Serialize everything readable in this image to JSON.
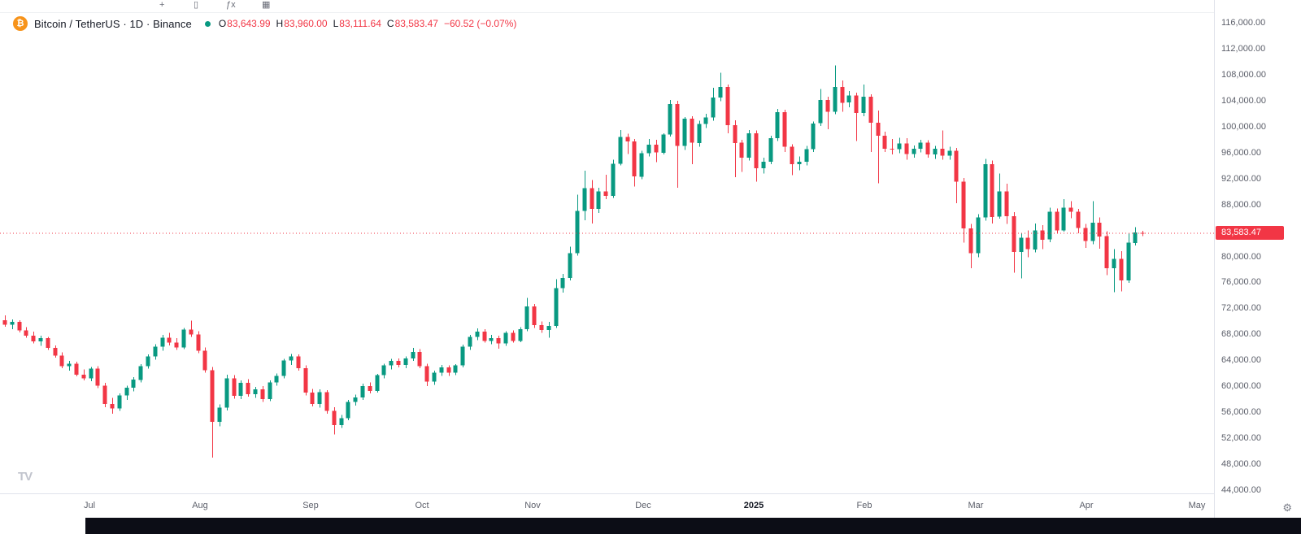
{
  "icons": {
    "compare": "+",
    "chart_type": "▯",
    "indicators": "ƒx",
    "layout": "▦",
    "gear": "⚙",
    "bitcoin": "₿",
    "watermark": "TV"
  },
  "legend": {
    "symbol_title": "Bitcoin / TetherUS · 1D · Binance",
    "ohlc": {
      "o_label": "O",
      "o": "83,643.99",
      "h_label": "H",
      "h": "83,960.00",
      "l_label": "L",
      "l": "83,111.64",
      "c_label": "C",
      "c": "83,583.47",
      "change": "−60.52 (−0.07%)"
    }
  },
  "price_axis": {
    "labels": [
      {
        "t": "116,000.00",
        "v": 116
      },
      {
        "t": "112,000.00",
        "v": 112
      },
      {
        "t": "108,000.00",
        "v": 108
      },
      {
        "t": "104,000.00",
        "v": 104
      },
      {
        "t": "100,000.00",
        "v": 100
      },
      {
        "t": "96,000.00",
        "v": 96
      },
      {
        "t": "92,000.00",
        "v": 92
      },
      {
        "t": "88,000.00",
        "v": 88
      },
      {
        "t": "80,000.00",
        "v": 80
      },
      {
        "t": "76,000.00",
        "v": 76
      },
      {
        "t": "72,000.00",
        "v": 72
      },
      {
        "t": "68,000.00",
        "v": 68
      },
      {
        "t": "64,000.00",
        "v": 64
      },
      {
        "t": "60,000.00",
        "v": 60
      },
      {
        "t": "56,000.00",
        "v": 56
      },
      {
        "t": "52,000.00",
        "v": 52
      },
      {
        "t": "48,000.00",
        "v": 48
      },
      {
        "t": "44,000.00",
        "v": 44
      }
    ],
    "last_price_badge": {
      "text": "83,583.47",
      "color": "#F23645"
    }
  },
  "time_axis": {
    "labels": [
      {
        "t": "Jul"
      },
      {
        "t": "Aug"
      },
      {
        "t": "Sep"
      },
      {
        "t": "Oct"
      },
      {
        "t": "Nov"
      },
      {
        "t": "Dec"
      },
      {
        "t": "2025",
        "year": true
      },
      {
        "t": "Feb"
      },
      {
        "t": "Mar"
      },
      {
        "t": "Apr"
      },
      {
        "t": "May"
      }
    ]
  },
  "colors": {
    "up": "#089981",
    "down": "#F23645",
    "axis_text": "#5d606b",
    "title_text": "#131722",
    "accent_orange": "#F7931A"
  },
  "chart_data": {
    "type": "candlestick",
    "title": "Bitcoin / TetherUS · 1D · Binance",
    "unit": "thousand USD",
    "price_range": [
      44,
      116
    ],
    "grid": false,
    "legend_position": "top-left",
    "x_months": [
      "Jul",
      "Aug",
      "Sep",
      "Oct",
      "Nov",
      "Dec",
      "2025",
      "Feb",
      "Mar",
      "Apr",
      "May"
    ],
    "up_color": "#089981",
    "down_color": "#F23645",
    "last_price": 83.58347,
    "last_candle_ohlc": [
      83.64399,
      83.96,
      83.11164,
      83.58347
    ],
    "candles": [
      [
        70.2,
        70.9,
        69.2,
        69.5
      ],
      [
        69.5,
        70.3,
        68.8,
        69.9
      ],
      [
        69.9,
        70.2,
        68.3,
        68.6
      ],
      [
        68.6,
        69.1,
        67.5,
        67.8
      ],
      [
        67.8,
        68.4,
        66.6,
        66.9
      ],
      [
        66.9,
        67.8,
        66.2,
        67.4
      ],
      [
        67.4,
        67.6,
        65.6,
        65.9
      ],
      [
        65.9,
        66.3,
        64.4,
        64.7
      ],
      [
        64.7,
        65.2,
        62.8,
        63.1
      ],
      [
        63.1,
        63.9,
        62.4,
        63.5
      ],
      [
        63.5,
        63.8,
        61.5,
        61.8
      ],
      [
        61.8,
        62.6,
        60.9,
        61.2
      ],
      [
        61.2,
        63.0,
        60.8,
        62.7
      ],
      [
        62.7,
        63.1,
        59.7,
        60.1
      ],
      [
        60.1,
        60.5,
        56.8,
        57.3
      ],
      [
        57.3,
        58.2,
        55.8,
        56.6
      ],
      [
        56.6,
        58.9,
        56.2,
        58.6
      ],
      [
        58.6,
        60.1,
        57.9,
        59.8
      ],
      [
        59.8,
        61.4,
        59.2,
        61.0
      ],
      [
        61.0,
        63.4,
        60.6,
        63.1
      ],
      [
        63.1,
        64.9,
        62.7,
        64.6
      ],
      [
        64.6,
        66.5,
        64.1,
        66.1
      ],
      [
        66.1,
        67.9,
        65.5,
        67.5
      ],
      [
        67.5,
        68.2,
        66.3,
        66.7
      ],
      [
        66.7,
        67.4,
        65.6,
        66.0
      ],
      [
        66.0,
        69.0,
        65.7,
        68.7
      ],
      [
        68.7,
        70.1,
        67.6,
        68.0
      ],
      [
        68.0,
        68.5,
        65.1,
        65.5
      ],
      [
        65.5,
        66.0,
        62.1,
        62.5
      ],
      [
        62.5,
        63.0,
        49.0,
        54.5
      ],
      [
        54.5,
        57.2,
        53.8,
        56.7
      ],
      [
        56.7,
        61.8,
        56.3,
        61.2
      ],
      [
        61.2,
        61.7,
        58.1,
        58.5
      ],
      [
        58.5,
        60.9,
        58.0,
        60.5
      ],
      [
        60.5,
        61.1,
        58.4,
        58.8
      ],
      [
        58.8,
        59.9,
        58.2,
        59.5
      ],
      [
        59.5,
        60.0,
        57.6,
        58.0
      ],
      [
        58.0,
        60.9,
        57.7,
        60.6
      ],
      [
        60.6,
        62.0,
        60.1,
        61.6
      ],
      [
        61.6,
        64.2,
        61.2,
        64.0
      ],
      [
        64.0,
        65.0,
        63.3,
        64.6
      ],
      [
        64.6,
        64.9,
        62.4,
        62.8
      ],
      [
        62.8,
        63.2,
        58.6,
        59.0
      ],
      [
        59.0,
        59.6,
        56.9,
        57.3
      ],
      [
        57.3,
        59.5,
        56.7,
        59.1
      ],
      [
        59.1,
        59.4,
        55.8,
        56.2
      ],
      [
        56.2,
        56.8,
        52.6,
        54.0
      ],
      [
        54.0,
        55.6,
        53.6,
        55.1
      ],
      [
        55.1,
        57.9,
        54.8,
        57.6
      ],
      [
        57.6,
        58.7,
        57.0,
        58.3
      ],
      [
        58.3,
        60.4,
        57.9,
        60.0
      ],
      [
        60.0,
        60.6,
        58.9,
        59.3
      ],
      [
        59.3,
        61.9,
        59.0,
        61.7
      ],
      [
        61.7,
        63.5,
        61.2,
        63.2
      ],
      [
        63.2,
        64.2,
        62.6,
        63.9
      ],
      [
        63.9,
        64.3,
        62.9,
        63.3
      ],
      [
        63.3,
        64.6,
        62.8,
        64.3
      ],
      [
        64.3,
        65.9,
        63.9,
        65.3
      ],
      [
        65.3,
        65.7,
        62.8,
        63.1
      ],
      [
        63.1,
        63.5,
        60.0,
        60.7
      ],
      [
        60.7,
        62.4,
        60.2,
        62.1
      ],
      [
        62.1,
        63.3,
        61.6,
        62.9
      ],
      [
        62.9,
        63.2,
        61.6,
        62.1
      ],
      [
        62.1,
        63.4,
        61.7,
        63.2
      ],
      [
        63.2,
        66.4,
        62.9,
        66.1
      ],
      [
        66.1,
        67.9,
        65.6,
        67.6
      ],
      [
        67.6,
        68.9,
        67.1,
        68.4
      ],
      [
        68.4,
        68.8,
        66.7,
        67.0
      ],
      [
        67.0,
        67.9,
        66.5,
        67.4
      ],
      [
        67.4,
        67.8,
        65.8,
        66.6
      ],
      [
        66.6,
        68.5,
        66.2,
        68.2
      ],
      [
        68.2,
        68.6,
        66.7,
        67.0
      ],
      [
        67.0,
        69.1,
        66.8,
        68.8
      ],
      [
        68.8,
        73.6,
        68.5,
        72.3
      ],
      [
        72.3,
        72.7,
        69.0,
        69.4
      ],
      [
        69.4,
        70.0,
        68.2,
        68.7
      ],
      [
        68.7,
        69.9,
        67.5,
        69.3
      ],
      [
        69.3,
        76.5,
        69.0,
        75.1
      ],
      [
        75.1,
        77.3,
        74.4,
        76.7
      ],
      [
        76.7,
        81.5,
        76.3,
        80.5
      ],
      [
        80.5,
        89.5,
        80.1,
        87.0
      ],
      [
        87.0,
        93.2,
        85.6,
        90.5
      ],
      [
        90.5,
        91.8,
        85.1,
        87.3
      ],
      [
        87.3,
        90.6,
        86.7,
        90.0
      ],
      [
        90.0,
        92.6,
        88.8,
        89.3
      ],
      [
        89.3,
        94.9,
        89.0,
        94.3
      ],
      [
        94.3,
        99.5,
        94.0,
        98.4
      ],
      [
        98.4,
        98.9,
        95.8,
        97.7
      ],
      [
        97.7,
        98.1,
        90.8,
        92.3
      ],
      [
        92.3,
        96.3,
        91.9,
        95.9
      ],
      [
        95.9,
        98.1,
        95.4,
        97.2
      ],
      [
        97.2,
        98.0,
        94.5,
        96.0
      ],
      [
        96.0,
        99.0,
        95.7,
        98.8
      ],
      [
        98.8,
        104.1,
        98.5,
        103.5
      ],
      [
        103.5,
        104.0,
        90.6,
        97.0
      ],
      [
        97.0,
        101.5,
        96.4,
        101.2
      ],
      [
        101.2,
        101.6,
        94.2,
        97.5
      ],
      [
        97.5,
        100.9,
        96.9,
        100.4
      ],
      [
        100.4,
        102.0,
        99.8,
        101.4
      ],
      [
        101.4,
        106.0,
        100.9,
        104.5
      ],
      [
        104.5,
        108.3,
        103.9,
        106.1
      ],
      [
        106.1,
        106.5,
        99.0,
        100.2
      ],
      [
        100.2,
        101.0,
        92.2,
        97.5
      ],
      [
        97.5,
        98.0,
        93.0,
        95.2
      ],
      [
        95.2,
        99.5,
        94.8,
        99.0
      ],
      [
        99.0,
        99.4,
        91.5,
        93.6
      ],
      [
        93.6,
        95.2,
        92.8,
        94.6
      ],
      [
        94.6,
        98.6,
        94.2,
        98.2
      ],
      [
        98.2,
        102.7,
        97.8,
        102.2
      ],
      [
        102.2,
        102.6,
        96.1,
        96.9
      ],
      [
        96.9,
        97.3,
        92.5,
        94.2
      ],
      [
        94.2,
        95.4,
        93.3,
        94.6
      ],
      [
        94.6,
        97.0,
        94.0,
        96.5
      ],
      [
        96.5,
        100.8,
        96.1,
        100.5
      ],
      [
        100.5,
        105.8,
        100.1,
        104.1
      ],
      [
        104.1,
        104.6,
        99.6,
        102.3
      ],
      [
        102.3,
        109.4,
        101.9,
        106.1
      ],
      [
        106.1,
        107.1,
        102.3,
        103.7
      ],
      [
        103.7,
        105.5,
        103.0,
        104.8
      ],
      [
        104.8,
        105.2,
        97.8,
        102.1
      ],
      [
        102.1,
        106.5,
        101.6,
        104.6
      ],
      [
        104.6,
        105.0,
        96.1,
        100.6
      ],
      [
        100.6,
        102.5,
        91.3,
        98.6
      ],
      [
        98.6,
        99.2,
        96.1,
        96.6
      ],
      [
        96.6,
        98.1,
        95.7,
        96.5
      ],
      [
        96.5,
        98.3,
        95.9,
        97.4
      ],
      [
        97.4,
        98.2,
        94.9,
        95.8
      ],
      [
        95.8,
        97.1,
        95.2,
        96.6
      ],
      [
        96.6,
        98.0,
        96.0,
        97.5
      ],
      [
        97.5,
        97.9,
        95.2,
        95.7
      ],
      [
        95.7,
        97.0,
        95.0,
        96.6
      ],
      [
        96.6,
        99.4,
        94.9,
        95.5
      ],
      [
        95.5,
        96.9,
        94.9,
        96.3
      ],
      [
        96.3,
        96.7,
        88.2,
        91.5
      ],
      [
        91.5,
        92.1,
        82.1,
        84.3
      ],
      [
        84.3,
        85.0,
        78.2,
        80.5
      ],
      [
        80.5,
        86.5,
        79.9,
        86.0
      ],
      [
        86.0,
        95.0,
        85.5,
        94.2
      ],
      [
        94.2,
        94.8,
        85.1,
        86.1
      ],
      [
        86.1,
        92.8,
        85.8,
        90.0
      ],
      [
        90.0,
        91.2,
        85.0,
        86.2
      ],
      [
        86.2,
        86.8,
        77.5,
        80.7
      ],
      [
        80.7,
        83.6,
        76.6,
        82.9
      ],
      [
        82.9,
        84.0,
        79.9,
        81.1
      ],
      [
        81.1,
        85.1,
        80.6,
        84.0
      ],
      [
        84.0,
        84.8,
        81.1,
        82.6
      ],
      [
        82.6,
        87.5,
        82.2,
        86.9
      ],
      [
        86.9,
        87.4,
        83.6,
        84.0
      ],
      [
        84.0,
        88.8,
        83.8,
        87.5
      ],
      [
        87.5,
        88.5,
        85.9,
        86.9
      ],
      [
        86.9,
        87.3,
        83.6,
        84.4
      ],
      [
        84.4,
        85.0,
        81.3,
        82.4
      ],
      [
        82.4,
        88.5,
        81.9,
        85.2
      ],
      [
        85.2,
        86.0,
        81.2,
        83.1
      ],
      [
        83.1,
        83.9,
        77.1,
        78.2
      ],
      [
        78.2,
        81.1,
        74.5,
        79.6
      ],
      [
        79.6,
        80.8,
        74.6,
        76.3
      ],
      [
        76.3,
        83.5,
        75.9,
        82.1
      ],
      [
        82.1,
        84.5,
        81.7,
        83.7
      ],
      [
        83.64,
        83.96,
        83.11,
        83.58
      ]
    ]
  }
}
